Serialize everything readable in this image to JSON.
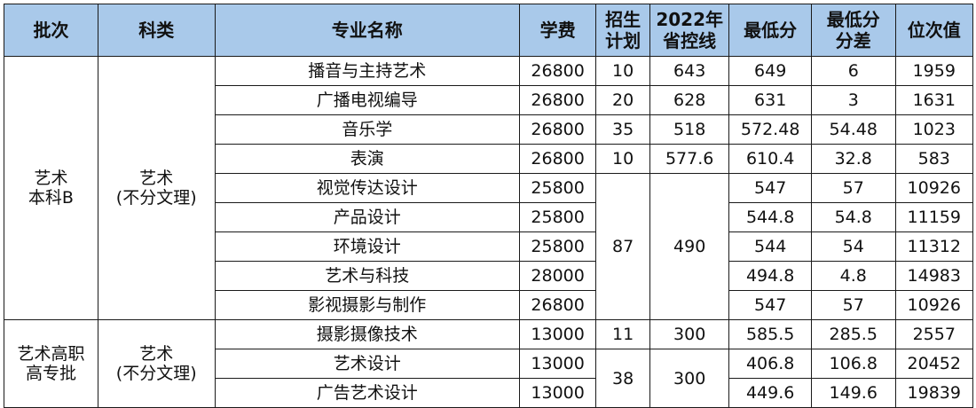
{
  "table": {
    "headers": {
      "batch": "批次",
      "category": "科类",
      "major": "专业名称",
      "tuition": "学费",
      "plan": [
        "招生",
        "计划"
      ],
      "control_line": [
        "2022年",
        "省控线"
      ],
      "min_score": "最低分",
      "min_diff": [
        "最低分",
        "分差"
      ],
      "rank": "位次值"
    },
    "groups": [
      {
        "batch": [
          "艺术",
          "本科B"
        ],
        "category": [
          "艺术",
          "(不分文理)"
        ]
      },
      {
        "batch": [
          "艺术高职",
          "高专批"
        ],
        "category": [
          "艺术",
          "(不分文理)"
        ]
      }
    ],
    "rows": [
      {
        "major": "播音与主持艺术",
        "tuition": "26800",
        "plan": "10",
        "control": "643",
        "min": "649",
        "diff": "6",
        "rank": "1959"
      },
      {
        "major": "广播电视编导",
        "tuition": "26800",
        "plan": "20",
        "control": "628",
        "min": "631",
        "diff": "3",
        "rank": "1631"
      },
      {
        "major": "音乐学",
        "tuition": "26800",
        "plan": "35",
        "control": "518",
        "min": "572.48",
        "diff": "54.48",
        "rank": "1023"
      },
      {
        "major": "表演",
        "tuition": "26800",
        "plan": "10",
        "control": "577.6",
        "min": "610.4",
        "diff": "32.8",
        "rank": "583"
      },
      {
        "major": "视觉传达设计",
        "tuition": "25800",
        "plan": "87",
        "control": "490",
        "min": "547",
        "diff": "57",
        "rank": "10926"
      },
      {
        "major": "产品设计",
        "tuition": "25800",
        "min": "544.8",
        "diff": "54.8",
        "rank": "11159"
      },
      {
        "major": "环境设计",
        "tuition": "25800",
        "min": "544",
        "diff": "54",
        "rank": "11312"
      },
      {
        "major": "艺术与科技",
        "tuition": "28000",
        "min": "494.8",
        "diff": "4.8",
        "rank": "14983"
      },
      {
        "major": "影视摄影与制作",
        "tuition": "26800",
        "min": "547",
        "diff": "57",
        "rank": "10926"
      },
      {
        "major": "摄影摄像技术",
        "tuition": "13000",
        "plan": "11",
        "control": "300",
        "min": "585.5",
        "diff": "285.5",
        "rank": "2557"
      },
      {
        "major": "艺术设计",
        "tuition": "13000",
        "plan": "38",
        "control": "300",
        "min": "406.8",
        "diff": "106.8",
        "rank": "20452"
      },
      {
        "major": "广告艺术设计",
        "tuition": "13000",
        "min": "449.6",
        "diff": "149.6",
        "rank": "19839"
      }
    ]
  }
}
